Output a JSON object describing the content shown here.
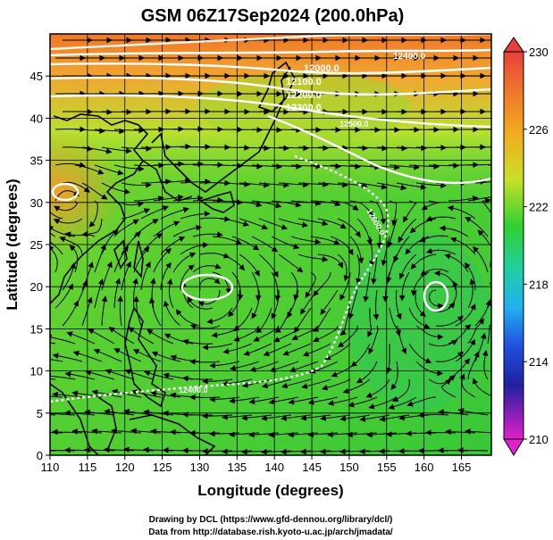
{
  "title": "GSM 06Z17Sep2024 (200.0hPa)",
  "ylabel": "Latitude  (degrees)",
  "xlabel": "Longitude (degrees)",
  "x_ticks": [
    "110",
    "115",
    "120",
    "125",
    "130",
    "135",
    "140",
    "145",
    "150",
    "155",
    "160",
    "165"
  ],
  "y_ticks": [
    "0",
    "5",
    "10",
    "15",
    "20",
    "25",
    "30",
    "35",
    "40",
    "45"
  ],
  "colorbar_ticks": [
    "230",
    "226",
    "222",
    "218",
    "214",
    "210"
  ],
  "contour_labels": [
    "12000.0",
    "12100.0",
    "12200.0",
    "12300.0",
    "12400.0",
    "12500.0",
    "12600.0",
    "12400.0"
  ],
  "credits": {
    "line1": "Drawing by DCL (https://www.gfd-dennou.org/library/dcl/)",
    "line2": "Data from http://database.rish.kyoto-u.ac.jp/arch/jmadata/"
  },
  "chart_data": {
    "type": "heatmap",
    "title": "GSM 06Z17Sep2024 (200.0hPa)",
    "xlabel": "Longitude (degrees)",
    "ylabel": "Latitude  (degrees)",
    "xlim": [
      110,
      169
    ],
    "ylim": [
      0,
      50
    ],
    "colorbar_range": [
      210,
      230
    ],
    "colorbar_ticks": [
      230,
      226,
      222,
      218,
      214,
      210
    ],
    "colors": {
      "high": "#e8502a",
      "mid_high": "#f0a020",
      "mid": "#2fcf30",
      "mid_low": "#22aaee",
      "low": "#2020a0",
      "bottom": "#e020c0"
    }
  }
}
